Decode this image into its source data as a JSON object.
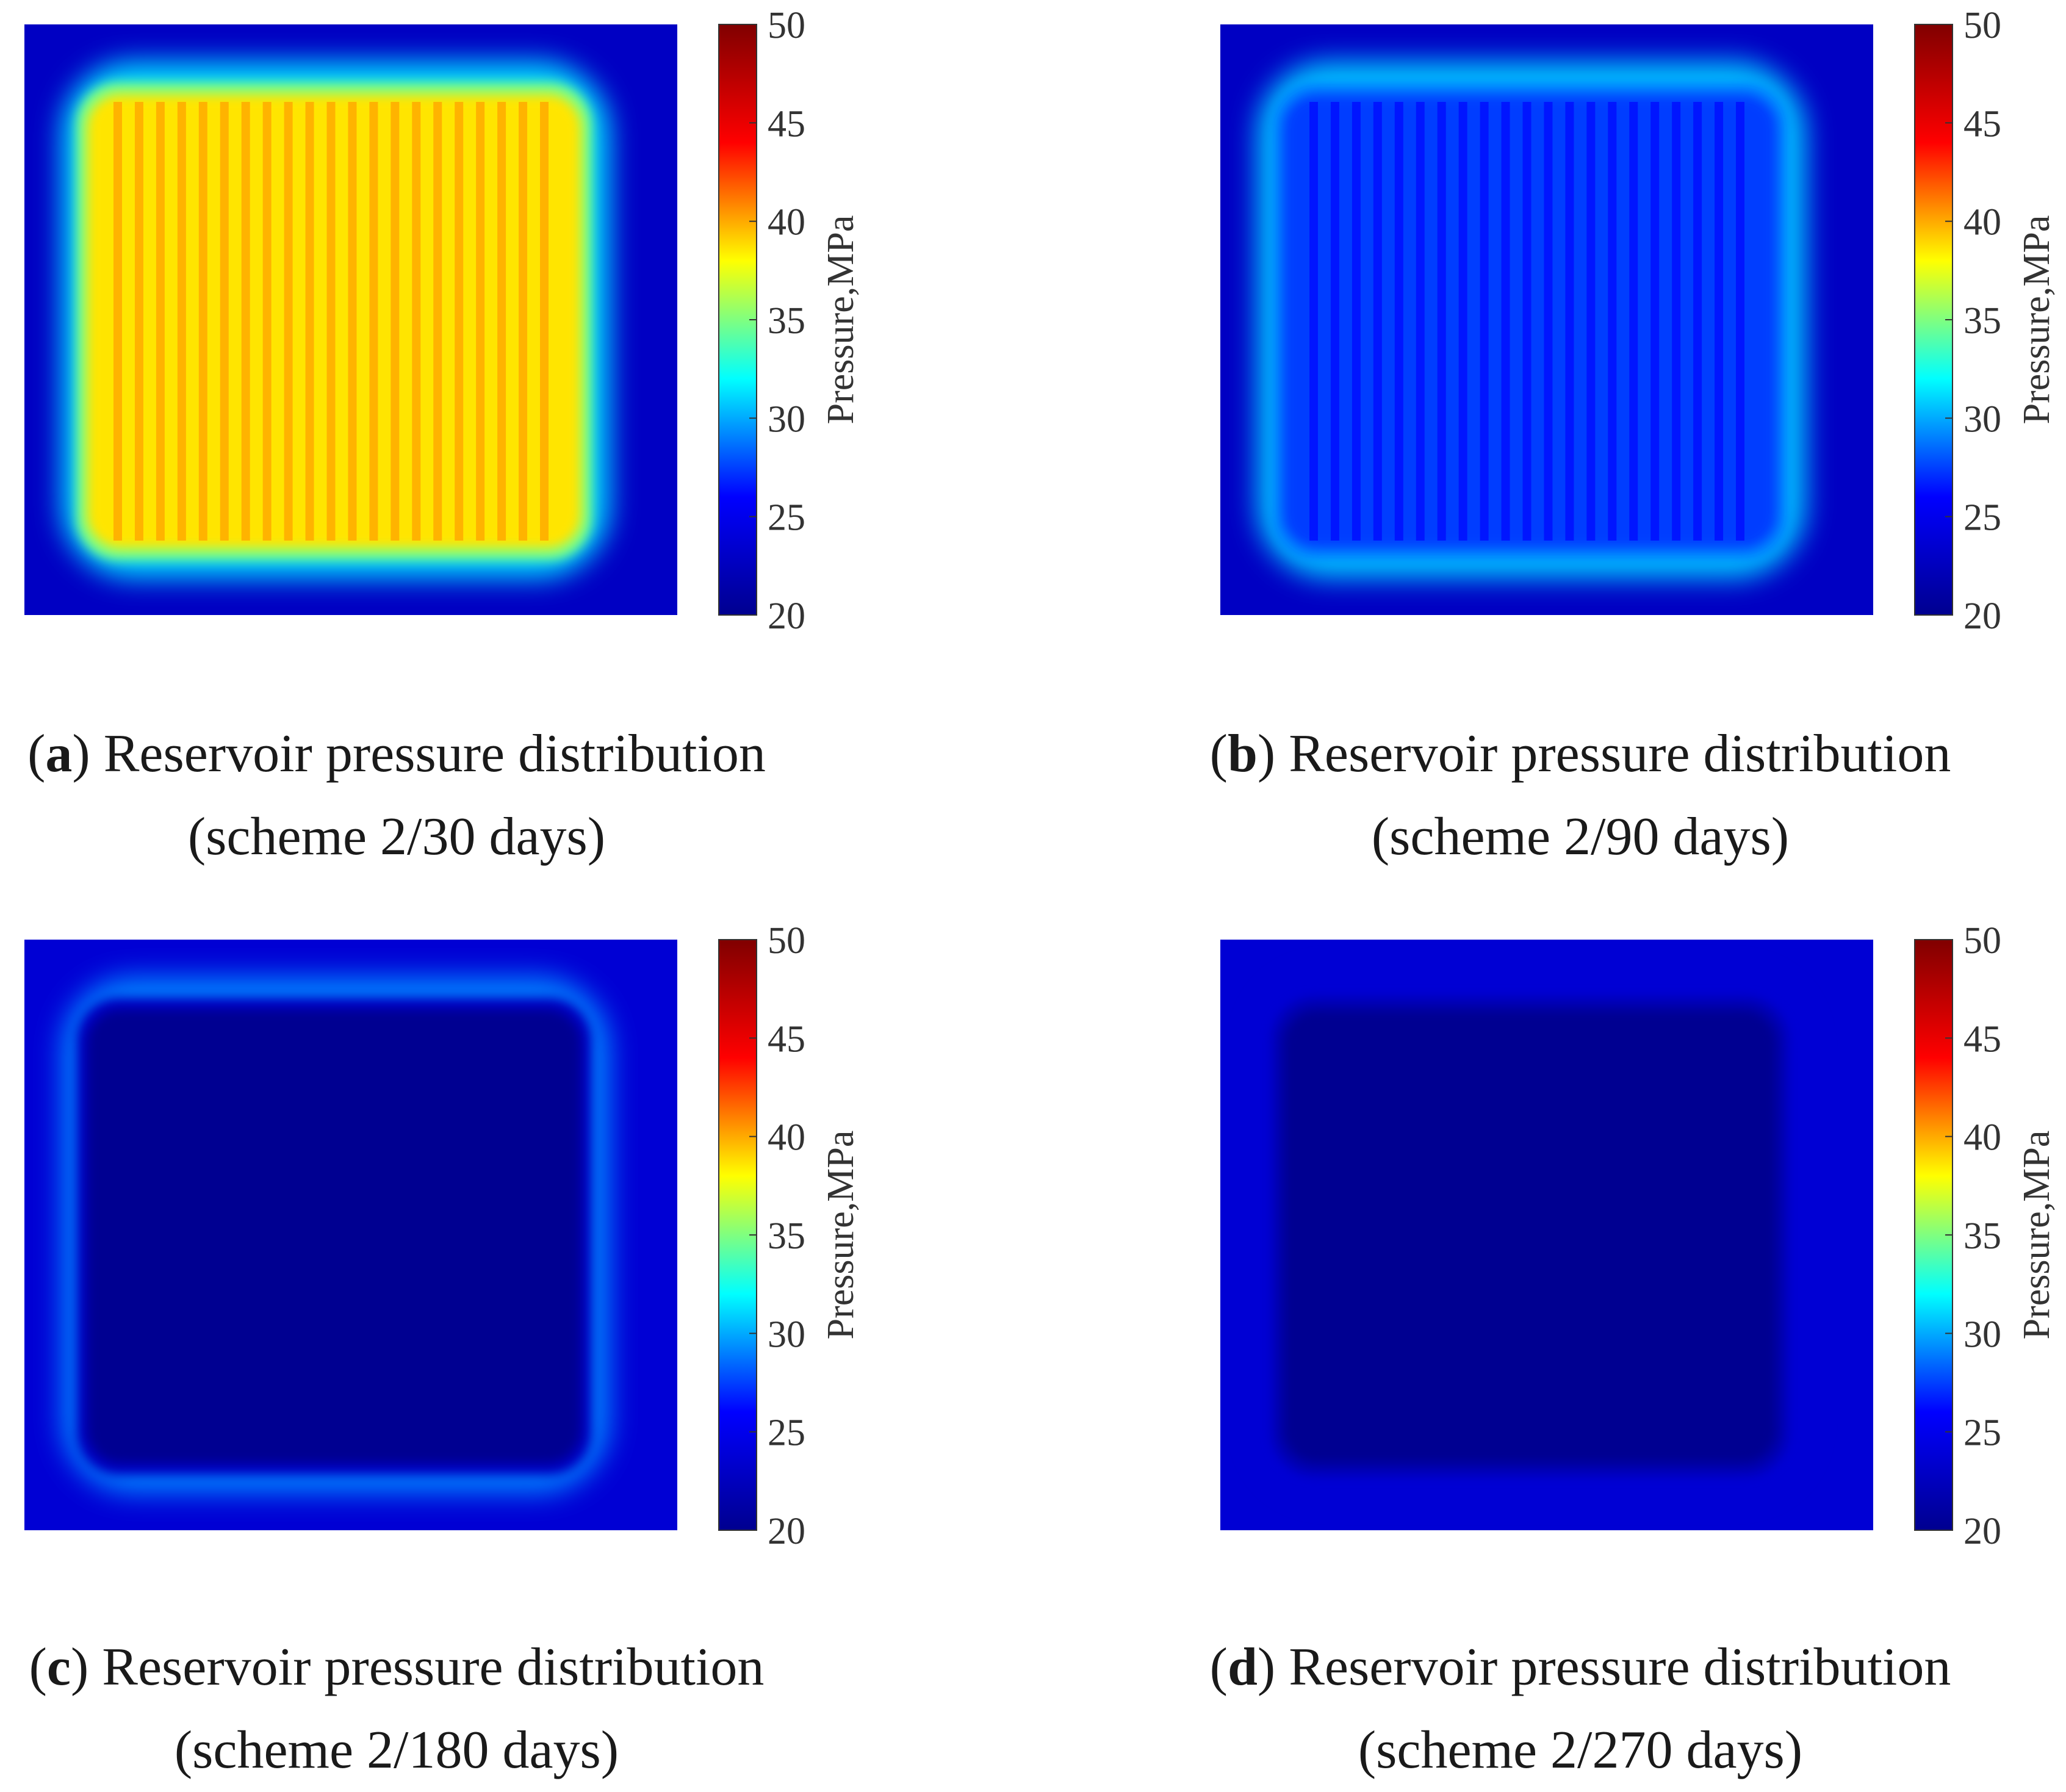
{
  "colorbar": {
    "label": "Pressure,MPa",
    "ticks": [
      "50",
      "45",
      "40",
      "35",
      "30",
      "25",
      "20"
    ],
    "range": [
      20,
      50
    ],
    "colormap": [
      "#00008f",
      "#0000ff",
      "#00ffff",
      "#ffff00",
      "#ff0000",
      "#800000"
    ]
  },
  "chart_data": [
    {
      "type": "heatmap",
      "letter": "a",
      "caption_line1": "Reservoir pressure distribution",
      "caption_line2": "(scheme 2/30 days)",
      "clim": [
        20,
        50
      ],
      "fracture_count": 21,
      "levels": {
        "outer": 22,
        "halo": 30,
        "boundary": 35,
        "interior": 39.5,
        "fracture": 41.5
      },
      "interior_uniform": false
    },
    {
      "type": "heatmap",
      "letter": "b",
      "caption_line1": "Reservoir pressure distribution",
      "caption_line2": "(scheme 2/90 days)",
      "clim": [
        20,
        50
      ],
      "fracture_count": 21,
      "levels": {
        "outer": 22,
        "halo": 29.5,
        "boundary": 27.5,
        "interior": 25.5,
        "fracture": 24
      },
      "interior_uniform": false
    },
    {
      "type": "heatmap",
      "letter": "c",
      "caption_line1": "Reservoir pressure distribution",
      "caption_line2": "(scheme 2/180 days)",
      "clim": [
        20,
        50
      ],
      "fracture_count": 21,
      "levels": {
        "outer": 22.5,
        "halo": 27.5,
        "boundary": 22,
        "interior": 20.5,
        "fracture": 20.5
      },
      "interior_uniform": true
    },
    {
      "type": "heatmap",
      "letter": "d",
      "caption_line1": "Reservoir pressure distribution",
      "caption_line2": "(scheme 2/270 days)",
      "clim": [
        20,
        50
      ],
      "fracture_count": 21,
      "levels": {
        "outer": 22.5,
        "halo": 22.5,
        "boundary": 21.5,
        "interior": 20.5,
        "fracture": 20.5
      },
      "interior_uniform": true
    }
  ]
}
